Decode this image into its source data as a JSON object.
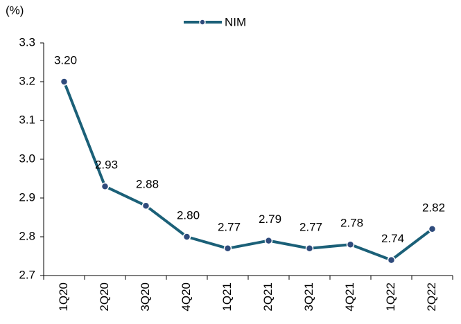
{
  "chart_data": {
    "type": "line",
    "y_label": "(%)",
    "categories": [
      "1Q20",
      "2Q20",
      "3Q20",
      "4Q20",
      "1Q21",
      "2Q21",
      "3Q21",
      "4Q21",
      "1Q22",
      "2Q22"
    ],
    "series": [
      {
        "name": "NIM",
        "color": "#1b6078",
        "marker_color": "#2f4b7c",
        "values": [
          3.2,
          2.93,
          2.88,
          2.8,
          2.77,
          2.79,
          2.77,
          2.78,
          2.74,
          2.82
        ],
        "value_labels": [
          "3.20",
          "2.93",
          "2.88",
          "2.80",
          "2.77",
          "2.79",
          "2.77",
          "2.78",
          "2.74",
          "2.82"
        ]
      }
    ],
    "ylim": [
      2.7,
      3.3
    ],
    "yticks": [
      2.7,
      2.8,
      2.9,
      {
        "value": 3,
        "label": "3.0"
      },
      3.1,
      3.2,
      3.3
    ],
    "grid": false,
    "legend": "top"
  }
}
